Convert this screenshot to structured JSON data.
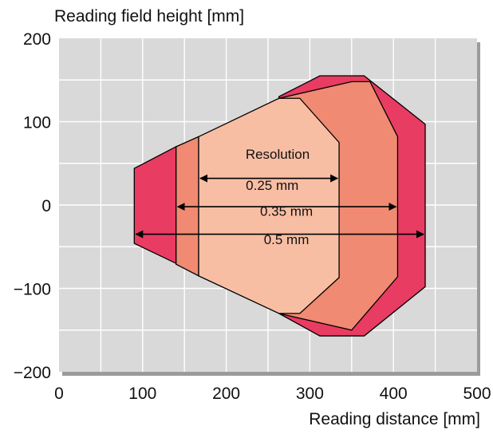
{
  "chart_data": {
    "type": "area",
    "title": "",
    "xlabel": "Reading distance  [mm]",
    "ylabel": "Reading field height [mm]",
    "xlim": [
      0,
      500
    ],
    "ylim": [
      -200,
      200
    ],
    "x_ticks": [
      0,
      100,
      200,
      300,
      400,
      500
    ],
    "y_ticks": [
      200,
      100,
      0,
      -100,
      -200
    ],
    "y_tick_labels": [
      "200",
      "100",
      "0",
      "−100",
      "−200"
    ],
    "grid": true,
    "resolution_heading": "Resolution",
    "series": [
      {
        "name": "0.5 mm",
        "color": "#e83c62",
        "arrow_y": -35,
        "arrow_x": [
          90,
          438
        ],
        "polygon": [
          [
            90,
            44
          ],
          [
            140,
            70
          ],
          [
            140,
            -70
          ],
          [
            90,
            -46
          ]
        ]
      },
      {
        "name": "0.5 mm",
        "color": "#e83c62",
        "arrow_y": -35,
        "polygon": [
          [
            312,
            155
          ],
          [
            365,
            155
          ],
          [
            438,
            97
          ],
          [
            438,
            -98
          ],
          [
            365,
            -157
          ],
          [
            312,
            -157
          ],
          [
            263,
            -130
          ],
          [
            263,
            130
          ]
        ]
      },
      {
        "name": "0.35 mm",
        "color": "#f08a72",
        "arrow_y": -2,
        "arrow_x": [
          140,
          405
        ],
        "polygon": [
          [
            140,
            70
          ],
          [
            167,
            82
          ],
          [
            167,
            -85
          ],
          [
            140,
            -71
          ]
        ]
      },
      {
        "name": "0.35 mm",
        "color": "#f08a72",
        "arrow_y": -2,
        "polygon": [
          [
            263,
            128
          ],
          [
            350,
            148
          ],
          [
            372,
            148
          ],
          [
            405,
            82
          ],
          [
            405,
            -86
          ],
          [
            350,
            -150
          ],
          [
            263,
            -130
          ]
        ]
      },
      {
        "name": "0.25 mm",
        "color": "#f8bea4",
        "arrow_y": 32,
        "arrow_x": [
          167,
          335
        ],
        "polygon": [
          [
            167,
            82
          ],
          [
            263,
            128
          ],
          [
            288,
            128
          ],
          [
            335,
            75
          ],
          [
            335,
            -87
          ],
          [
            288,
            -130
          ],
          [
            263,
            -130
          ],
          [
            167,
            -85
          ]
        ]
      }
    ],
    "labels": [
      {
        "text": "0.25 mm",
        "x": 255,
        "y": 18
      },
      {
        "text": "0.35 mm",
        "x": 272,
        "y": -13
      },
      {
        "text": "0.5 mm",
        "x": 272,
        "y": -47
      }
    ]
  }
}
